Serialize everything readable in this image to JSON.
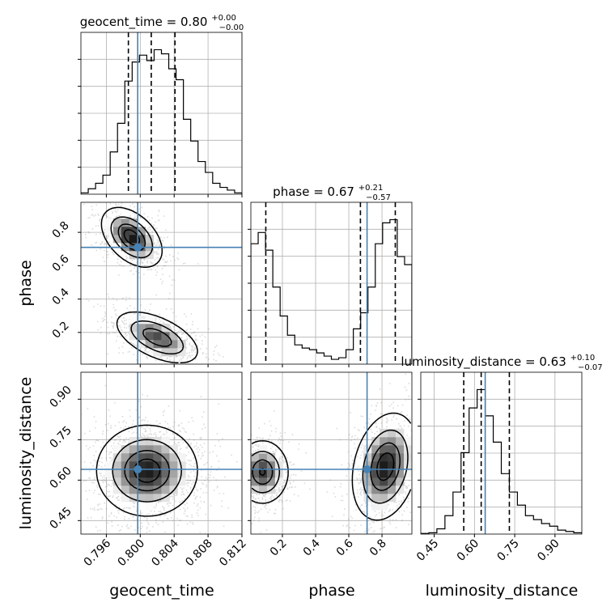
{
  "chart_data": {
    "type": "corner",
    "parameters": [
      {
        "name": "geocent_time",
        "label": "geocent_time",
        "range": [
          0.793,
          0.812
        ],
        "median": 0.8,
        "err_plus": 0.0,
        "err_minus": 0.0,
        "title_main": "geocent_time = 0.80",
        "title_sup": "+0.00",
        "title_sub": "−0.00",
        "quantiles": [
          0.7986,
          0.8013,
          0.8041
        ],
        "truth": 0.7997,
        "ticks": [
          {
            "v": 0.796,
            "t": "0.796"
          },
          {
            "v": 0.8,
            "t": "0.800"
          },
          {
            "v": 0.804,
            "t": "0.804"
          },
          {
            "v": 0.808,
            "t": "0.808"
          },
          {
            "v": 0.812,
            "t": "0.812"
          }
        ],
        "hist": [
          1,
          4,
          8,
          14,
          31,
          52,
          83,
          97,
          102,
          98,
          106,
          103,
          92,
          84,
          55,
          39,
          24,
          16,
          8,
          5,
          3,
          1
        ]
      },
      {
        "name": "phase",
        "label": "phase",
        "range": [
          0.01,
          0.98
        ],
        "median": 0.67,
        "err_plus": 0.21,
        "err_minus": 0.57,
        "title_main": "phase = 0.67",
        "title_sup": "+0.21",
        "title_sub": "−0.57",
        "quantiles": [
          0.1,
          0.67,
          0.88
        ],
        "truth": 0.71,
        "ticks": [
          {
            "v": 0.2,
            "t": "0.2"
          },
          {
            "v": 0.4,
            "t": "0.4"
          },
          {
            "v": 0.6,
            "t": "0.6"
          },
          {
            "v": 0.8,
            "t": "0.8"
          }
        ],
        "hist": [
          75,
          82,
          71,
          48,
          30,
          18,
          12,
          10,
          9,
          7,
          5,
          3,
          4,
          9,
          22,
          32,
          48,
          75,
          88,
          90,
          67,
          62
        ]
      },
      {
        "name": "luminosity_distance",
        "label": "luminosity_distance",
        "range": [
          0.4,
          1.0
        ],
        "median": 0.63,
        "err_plus": 0.1,
        "err_minus": 0.07,
        "title_main": "luminosity_distance = 0.63",
        "title_sup": "+0.10",
        "title_sub": "−0.07",
        "quantiles": [
          0.56,
          0.625,
          0.73
        ],
        "truth": 0.64,
        "ticks": [
          {
            "v": 0.45,
            "t": "0.45"
          },
          {
            "v": 0.6,
            "t": "0.60"
          },
          {
            "v": 0.75,
            "t": "0.75"
          },
          {
            "v": 0.9,
            "t": "0.90"
          }
        ],
        "hist": [
          0.5,
          1,
          4,
          14,
          32,
          62,
          96,
          110,
          90,
          70,
          46,
          32,
          22,
          14,
          11,
          8,
          6,
          3,
          2,
          1
        ]
      }
    ],
    "pairs": [
      {
        "x": "geocent_time",
        "y": "phase",
        "modes": [
          {
            "cx": 0.799,
            "cy": 0.77,
            "sx": 0.0018,
            "sy": 0.09,
            "rho": -0.45,
            "w": 1.0
          },
          {
            "cx": 0.802,
            "cy": 0.17,
            "sx": 0.0025,
            "sy": 0.08,
            "rho": -0.55,
            "w": 0.85
          }
        ]
      },
      {
        "x": "geocent_time",
        "y": "luminosity_distance",
        "modes": [
          {
            "cx": 0.8008,
            "cy": 0.635,
            "sx": 0.003,
            "sy": 0.085,
            "rho": 0.0,
            "w": 1.0
          }
        ]
      },
      {
        "x": "phase",
        "y": "luminosity_distance",
        "modes": [
          {
            "cx": 0.08,
            "cy": 0.63,
            "sx": 0.08,
            "sy": 0.06,
            "rho": 0.0,
            "w": 0.9
          },
          {
            "cx": 0.82,
            "cy": 0.65,
            "sx": 0.1,
            "sy": 0.1,
            "rho": 0.25,
            "w": 1.0
          }
        ]
      }
    ],
    "grid": true,
    "colors": {
      "truth": "#4682b4",
      "hist": "#000000",
      "quantile": "#000000",
      "grid": "#b0b0b0",
      "samples": "#808080"
    }
  }
}
